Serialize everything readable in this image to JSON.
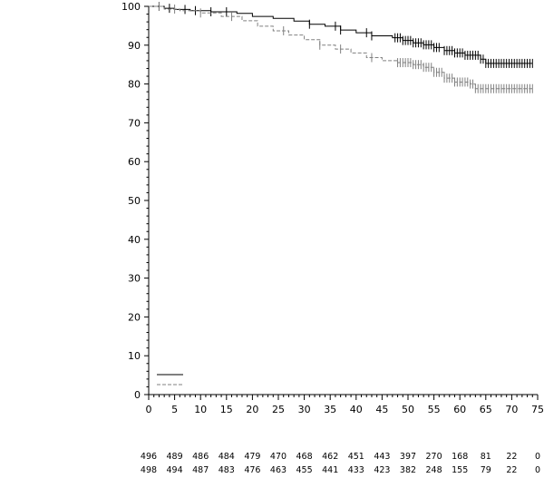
{
  "chart_data": {
    "type": "line",
    "title": "",
    "xlabel": "",
    "ylabel": "",
    "xlim": [
      0,
      75
    ],
    "ylim": [
      0,
      100
    ],
    "x_major_ticks": [
      0,
      5,
      10,
      15,
      20,
      25,
      30,
      35,
      40,
      45,
      50,
      55,
      60,
      65,
      70,
      75
    ],
    "y_major_ticks": [
      0,
      10,
      20,
      30,
      40,
      50,
      60,
      70,
      80,
      90,
      100
    ],
    "grid": false,
    "legend": {
      "placement": "bottom-left",
      "entries": [
        {
          "series": 0,
          "label": ""
        },
        {
          "series": 1,
          "label": ""
        }
      ]
    },
    "series": [
      {
        "color": "#000000",
        "style": "solid",
        "points": [
          [
            0,
            100
          ],
          [
            3,
            99.5
          ],
          [
            5,
            99.2
          ],
          [
            8,
            98.9
          ],
          [
            12,
            98.6
          ],
          [
            17,
            98.2
          ],
          [
            20,
            97.4
          ],
          [
            24,
            96.9
          ],
          [
            28,
            96.2
          ],
          [
            31,
            95.4
          ],
          [
            34,
            94.9
          ],
          [
            37,
            93.9
          ],
          [
            40,
            93.2
          ],
          [
            43,
            92.4
          ],
          [
            47,
            91.9
          ],
          [
            49,
            91.2
          ],
          [
            51,
            90.6
          ],
          [
            53,
            90.1
          ],
          [
            55,
            89.4
          ],
          [
            57,
            88.6
          ],
          [
            59,
            88.0
          ],
          [
            61,
            87.4
          ],
          [
            64,
            86.4
          ],
          [
            65,
            85.3
          ],
          [
            74,
            85.3
          ]
        ],
        "censor_x": [
          2,
          4,
          7,
          9,
          12,
          15,
          31,
          36,
          37,
          42,
          43,
          47.5,
          48,
          48.5,
          49,
          49.5,
          50,
          50.5,
          51,
          51.5,
          52,
          52.5,
          53,
          53.5,
          54,
          54.5,
          55,
          55.5,
          56,
          57,
          57.5,
          58,
          58.5,
          59,
          59.5,
          60,
          60.5,
          61,
          61.5,
          62,
          62.5,
          63,
          63.5,
          64,
          64.5,
          65,
          65.5,
          66,
          66.5,
          67,
          67.5,
          68,
          68.5,
          69,
          69.5,
          70,
          70.5,
          71,
          71.5,
          72,
          72.5,
          73,
          73.5,
          74
        ]
      },
      {
        "color": "#808080",
        "style": "dashed",
        "points": [
          [
            0,
            100
          ],
          [
            3,
            99.3
          ],
          [
            6,
            98.9
          ],
          [
            10,
            98.3
          ],
          [
            14,
            97.4
          ],
          [
            18,
            96.3
          ],
          [
            21,
            94.9
          ],
          [
            24,
            93.7
          ],
          [
            27,
            92.6
          ],
          [
            30,
            91.4
          ],
          [
            33,
            90.0
          ],
          [
            36,
            89.0
          ],
          [
            39,
            88.0
          ],
          [
            42,
            86.8
          ],
          [
            45,
            86.0
          ],
          [
            48,
            85.5
          ],
          [
            51,
            85.0
          ],
          [
            53,
            84.3
          ],
          [
            55,
            83.0
          ],
          [
            57,
            81.5
          ],
          [
            59,
            80.5
          ],
          [
            62,
            80.0
          ],
          [
            63,
            78.8
          ],
          [
            74,
            78.8
          ]
        ],
        "censor_x": [
          2,
          5,
          10,
          16,
          26,
          33,
          37,
          43,
          48,
          48.5,
          49,
          49.5,
          50,
          50.5,
          51,
          51.5,
          52,
          52.5,
          53,
          53.5,
          54,
          54.5,
          55,
          55.5,
          56,
          56.5,
          57,
          57.5,
          58,
          58.5,
          59,
          59.5,
          60,
          60.5,
          61,
          61.5,
          62,
          62.5,
          63,
          63.5,
          64,
          64.5,
          65,
          65.5,
          66,
          66.5,
          67,
          67.5,
          68,
          68.5,
          69,
          69.5,
          70,
          70.5,
          71,
          71.5,
          72,
          72.5,
          73,
          73.5,
          74
        ]
      }
    ],
    "risk_table": {
      "times": [
        0,
        5,
        10,
        15,
        20,
        25,
        30,
        35,
        40,
        45,
        50,
        55,
        60,
        65,
        70,
        75
      ],
      "rows": [
        [
          "496",
          "489",
          "486",
          "484",
          "479",
          "470",
          "468",
          "462",
          "451",
          "443",
          "397",
          "270",
          "168",
          "81",
          "22",
          "0"
        ],
        [
          "498",
          "494",
          "487",
          "483",
          "476",
          "463",
          "455",
          "441",
          "433",
          "423",
          "382",
          "248",
          "155",
          "79",
          "22",
          "0"
        ]
      ]
    }
  }
}
